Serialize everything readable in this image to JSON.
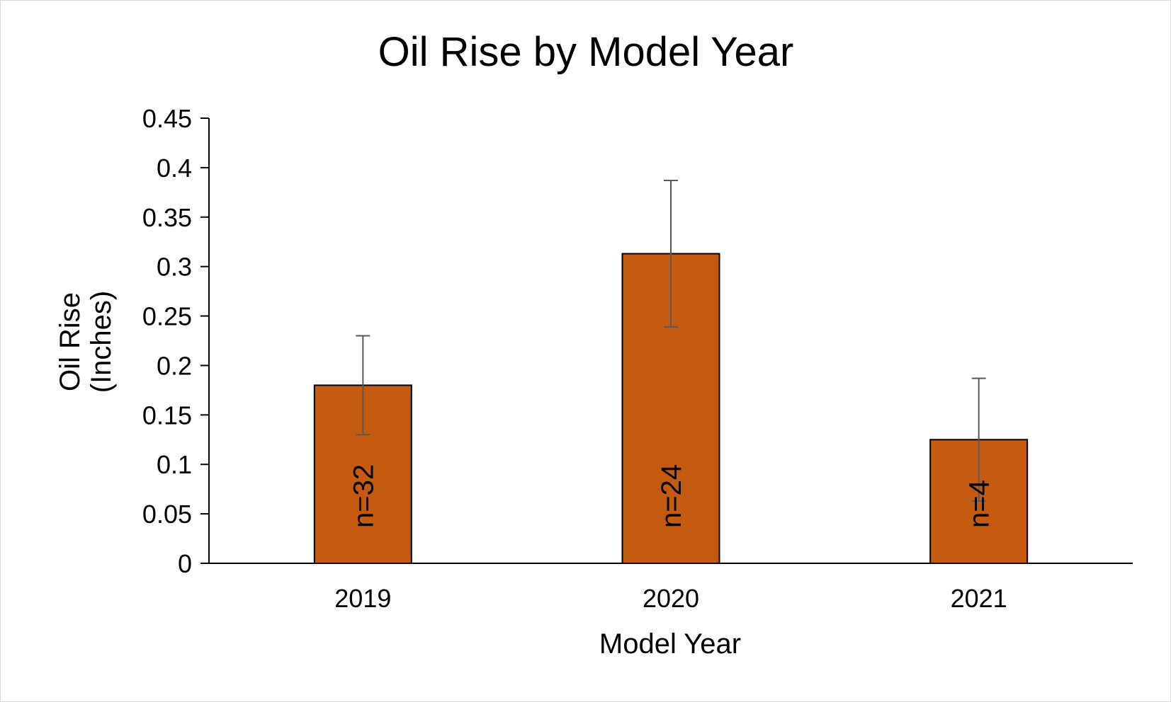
{
  "chart_data": {
    "type": "bar",
    "title": "Oil Rise by Model Year",
    "xlabel": "Model Year",
    "ylabel_lines": [
      "Oil Rise",
      "(Inches)"
    ],
    "categories": [
      "2019",
      "2020",
      "2021"
    ],
    "values": [
      0.18,
      0.313,
      0.125
    ],
    "error_upper": [
      0.23,
      0.387,
      0.187
    ],
    "error_lower": [
      0.13,
      0.239,
      0.063
    ],
    "bar_labels": [
      "n=32",
      "n=24",
      "n=4"
    ],
    "ylim": [
      0,
      0.45
    ],
    "y_ticks": [
      "0",
      "0.05",
      "0.1",
      "0.15",
      "0.2",
      "0.25",
      "0.3",
      "0.35",
      "0.4",
      "0.45"
    ],
    "grid": false,
    "legend": "none",
    "bar_color": "#c55a11",
    "bar_edge_color": "#000000",
    "error_bar_color": "#595959"
  }
}
